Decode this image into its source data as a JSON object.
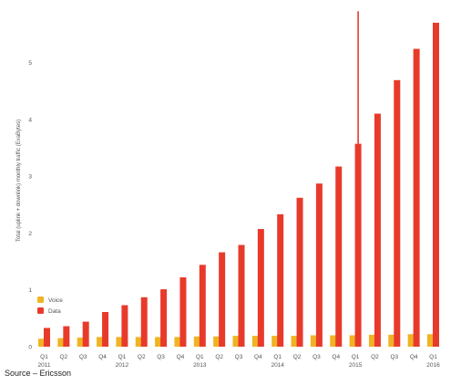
{
  "source_note": "Source – Ericsson",
  "colors": {
    "voice": "#f0b323",
    "data": "#e83a2b",
    "highlight_line": "#e83a2b",
    "axis_text": "#555555"
  },
  "chart_data": {
    "type": "bar",
    "title": "",
    "ylabel": "Total (uplink + downlink) monthly traffic (ExaBytes)",
    "xlabel": "",
    "ylim": [
      0,
      6
    ],
    "yticks": [
      0,
      1,
      2,
      3,
      4,
      5
    ],
    "grid": false,
    "legend": "bottom-left",
    "categories": [
      [
        "Q1",
        "2011"
      ],
      [
        "Q2",
        ""
      ],
      [
        "Q3",
        ""
      ],
      [
        "Q4",
        ""
      ],
      [
        "Q1",
        "2012"
      ],
      [
        "Q2",
        ""
      ],
      [
        "Q3",
        ""
      ],
      [
        "Q4",
        ""
      ],
      [
        "Q1",
        "2013"
      ],
      [
        "Q2",
        ""
      ],
      [
        "Q3",
        ""
      ],
      [
        "Q4",
        ""
      ],
      [
        "Q1",
        "2014"
      ],
      [
        "Q2",
        ""
      ],
      [
        "Q3",
        ""
      ],
      [
        "Q4",
        ""
      ],
      [
        "Q1",
        "2015"
      ],
      [
        "Q2",
        ""
      ],
      [
        "Q3",
        ""
      ],
      [
        "Q4",
        ""
      ],
      [
        "Q1",
        "2016"
      ]
    ],
    "series": [
      {
        "name": "Voice",
        "color": "#f0b323",
        "values": [
          0.14,
          0.15,
          0.16,
          0.17,
          0.17,
          0.17,
          0.17,
          0.17,
          0.18,
          0.18,
          0.19,
          0.19,
          0.19,
          0.19,
          0.2,
          0.2,
          0.2,
          0.21,
          0.21,
          0.22,
          0.22
        ]
      },
      {
        "name": "Data",
        "color": "#e83a2b",
        "values": [
          0.33,
          0.36,
          0.44,
          0.61,
          0.73,
          0.87,
          1.01,
          1.22,
          1.44,
          1.66,
          1.79,
          2.07,
          2.33,
          2.62,
          2.87,
          3.17,
          3.57,
          4.1,
          4.69,
          5.24,
          5.7
        ]
      }
    ],
    "highlight_marker": {
      "category_index": 16,
      "top_value": 5.9
    }
  }
}
